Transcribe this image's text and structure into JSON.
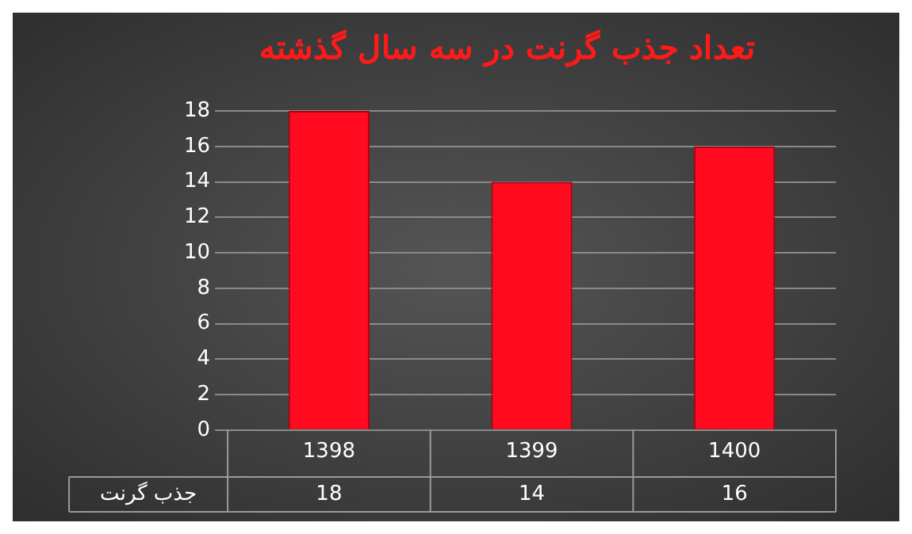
{
  "chart_data": {
    "type": "bar",
    "title": "تعداد جذب گرنت در سه سال گذشته",
    "categories": [
      "1398",
      "1399",
      "1400"
    ],
    "series": [
      {
        "name": "جذب گرنت",
        "color": "#ff0a1e",
        "values": [
          18,
          14,
          16
        ]
      }
    ],
    "ylim": [
      0,
      18
    ],
    "yticks": [
      0,
      2,
      4,
      6,
      8,
      10,
      12,
      14,
      16,
      18
    ],
    "grid": "y",
    "data_labels": true,
    "legend": false
  }
}
